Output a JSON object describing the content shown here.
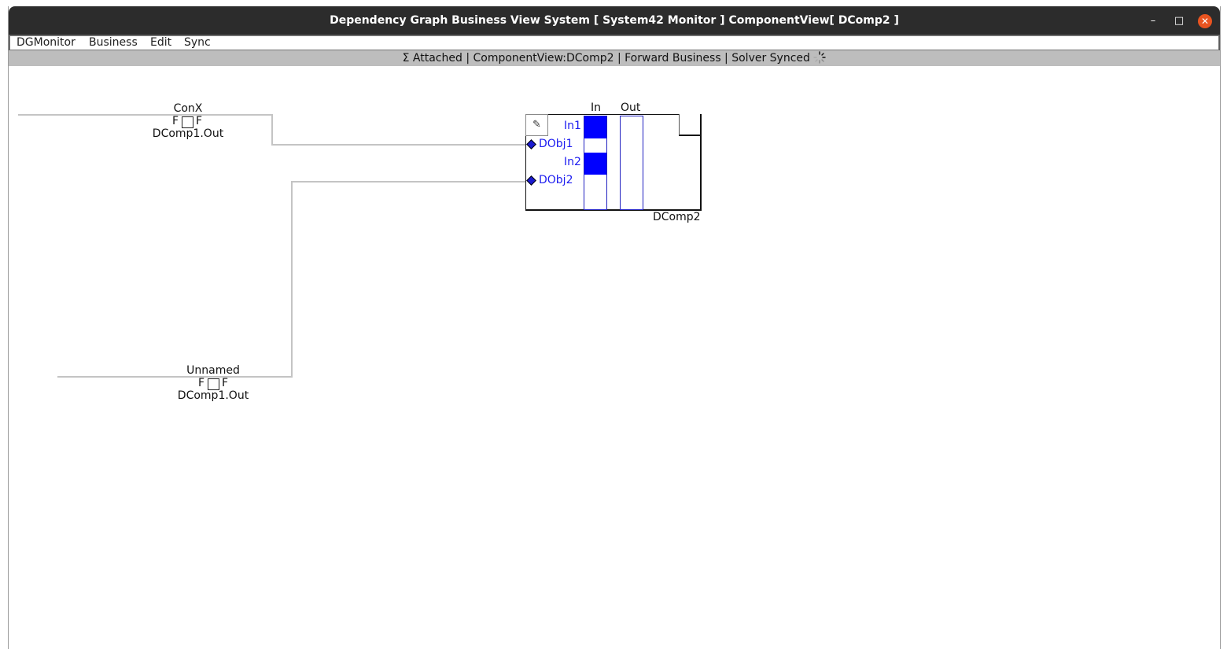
{
  "window": {
    "title": "Dependency Graph Business View System [ System42 Monitor ]  ComponentView[ DComp2 ]",
    "controls": {
      "minimize": "–",
      "maximize": "□",
      "close": "✕"
    }
  },
  "menu": {
    "items": [
      "DGMonitor",
      "Business",
      "Edit",
      "Sync"
    ]
  },
  "status": {
    "text": "Σ  Attached | ComponentView:DComp2 | Forward Business | Solver Synced"
  },
  "nodes": [
    {
      "name": "ConX",
      "flag_left": "F",
      "flag_right": "F",
      "source": "DComp1.Out"
    },
    {
      "name": "Unnamed",
      "flag_left": "F",
      "flag_right": "F",
      "source": "DComp1.Out"
    }
  ],
  "component": {
    "name": "DComp2",
    "in_header": "In",
    "out_header": "Out",
    "edit_icon": "✎",
    "ports": [
      {
        "input": "In1",
        "object": "DObj1"
      },
      {
        "input": "In2",
        "object": "DObj2"
      }
    ]
  },
  "colors": {
    "accent": "#0000ff",
    "wire": "#c4c4c4",
    "titlebar": "#2c2c2c",
    "close": "#e95420"
  }
}
